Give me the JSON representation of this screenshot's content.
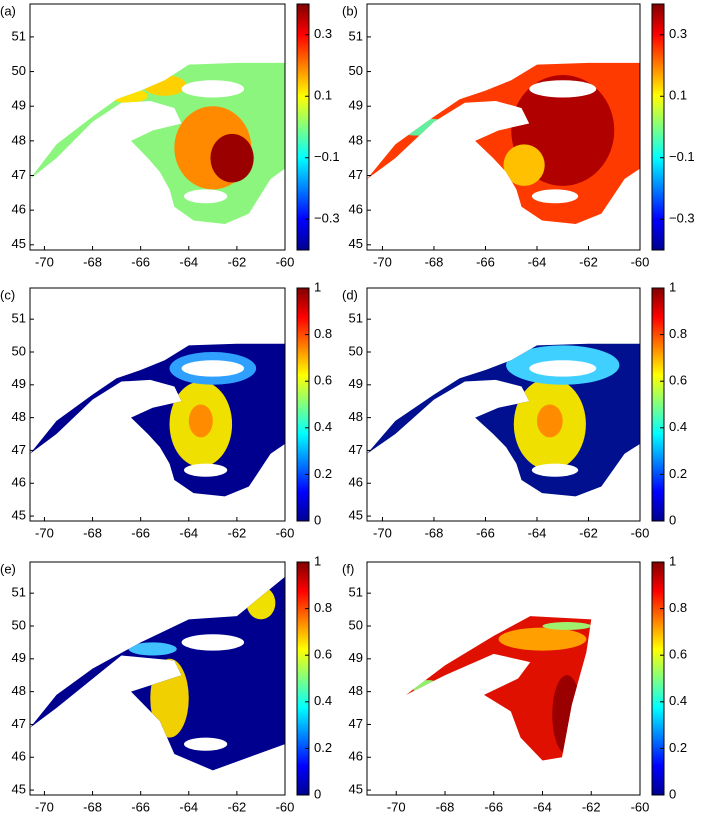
{
  "chart_data": [
    {
      "type": "map",
      "label": "(a)",
      "xlim": [
        -70.6,
        -60
      ],
      "xticks": [
        -70,
        -68,
        -66,
        -64,
        -62,
        -60
      ],
      "ylim": [
        44.85,
        51.95
      ],
      "yticks": [
        45,
        46,
        47,
        48,
        49,
        50,
        51
      ],
      "clim": [
        -0.4,
        0.4
      ],
      "cticks": [
        {
          "value": -0.3,
          "label": "−0.3"
        },
        {
          "value": -0.1,
          "label": "−0.1"
        },
        0.1,
        0.3
      ],
      "colormap": "jet"
    },
    {
      "type": "map",
      "label": "(b)",
      "xlim": [
        -70.6,
        -60
      ],
      "xticks": [
        -70,
        -68,
        -66,
        -64,
        -62,
        -60
      ],
      "ylim": [
        44.85,
        51.95
      ],
      "yticks": [
        45,
        46,
        47,
        48,
        49,
        50,
        51
      ],
      "clim": [
        -0.4,
        0.4
      ],
      "cticks": [
        {
          "value": -0.3,
          "label": "−0.3"
        },
        {
          "value": -0.1,
          "label": "−0.1"
        },
        0.1,
        0.3
      ],
      "colormap": "jet"
    },
    {
      "type": "map",
      "label": "(c)",
      "xlim": [
        -70.6,
        -60
      ],
      "xticks": [
        -70,
        -68,
        -66,
        -64,
        -62,
        -60
      ],
      "ylim": [
        44.85,
        51.95
      ],
      "yticks": [
        45,
        46,
        47,
        48,
        49,
        50,
        51
      ],
      "clim": [
        0,
        1
      ],
      "cticks": [
        0,
        0.2,
        0.4,
        0.6,
        0.8,
        1
      ],
      "colormap": "jet"
    },
    {
      "type": "map",
      "label": "(d)",
      "xlim": [
        -70.6,
        -60
      ],
      "xticks": [
        -70,
        -68,
        -66,
        -64,
        -62,
        -60
      ],
      "ylim": [
        44.85,
        51.95
      ],
      "yticks": [
        45,
        46,
        47,
        48,
        49,
        50,
        51
      ],
      "clim": [
        0,
        1
      ],
      "cticks": [
        0,
        0.2,
        0.4,
        0.6,
        0.8,
        1
      ],
      "colormap": "jet"
    },
    {
      "type": "map",
      "label": "(e)",
      "xlim": [
        -70.6,
        -60
      ],
      "xticks": [
        -70,
        -68,
        -66,
        -64,
        -62,
        -60
      ],
      "ylim": [
        44.85,
        51.95
      ],
      "yticks": [
        45,
        46,
        47,
        48,
        49,
        50,
        51
      ],
      "clim": [
        0,
        1
      ],
      "cticks": [
        0,
        0.2,
        0.4,
        0.6,
        0.8,
        1
      ],
      "colormap": "jet"
    },
    {
      "type": "map",
      "label": "(f)",
      "xlim": [
        -71.2,
        -60
      ],
      "xticks": [
        -70,
        -68,
        -66,
        -64,
        -62,
        -60
      ],
      "ylim": [
        44.85,
        51.95
      ],
      "yticks": [
        45,
        46,
        47,
        48,
        49,
        50,
        51
      ],
      "clim": [
        0,
        1
      ],
      "cticks": [
        0,
        0.2,
        0.4,
        0.6,
        0.8,
        1
      ],
      "colormap": "jet"
    }
  ]
}
